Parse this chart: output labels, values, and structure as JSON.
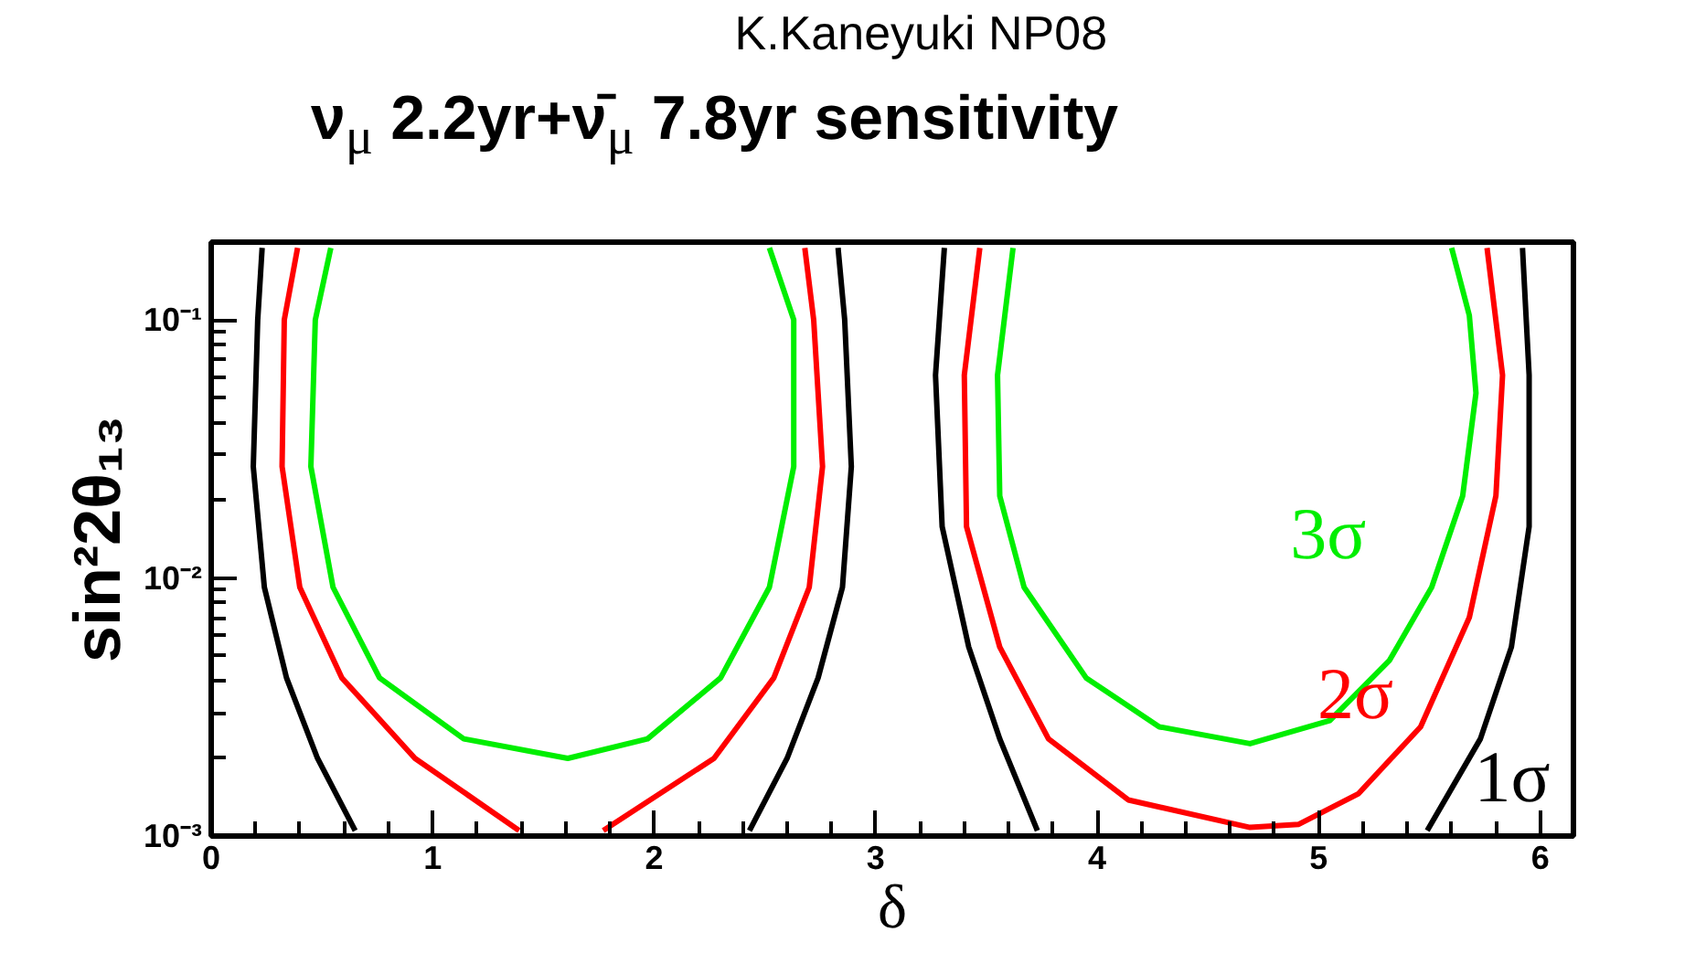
{
  "chart_data": {
    "type": "line",
    "title": "ν$_{μ}$ 2.2yr+ν̄$_{μ}$ 7.8yr sensitivity",
    "xlabel": "δ",
    "ylabel": "sin²2θ₁₃",
    "log": "y",
    "grid": false,
    "marker": "none",
    "line_style": "solid",
    "xlim": [
      0,
      6.15
    ],
    "ylim": [
      0.001,
      0.2
    ],
    "xticks": [
      0,
      1,
      2,
      3,
      4,
      5,
      6
    ],
    "yticks": [
      {
        "value": 0.001,
        "label": "10⁻³"
      },
      {
        "value": 0.01,
        "label": "10⁻²"
      },
      {
        "value": 0.1,
        "label": "10⁻¹"
      }
    ],
    "series": [
      {
        "name": "1σ",
        "color": "#000000",
        "x": [
          0.65,
          0.48,
          0.34,
          0.24,
          0.19,
          0.21,
          0.23,
          null,
          2.43,
          2.6,
          2.74,
          2.85,
          2.89,
          2.86,
          2.83,
          null,
          3.73,
          3.56,
          3.42,
          3.3,
          3.27,
          3.31,
          null,
          5.49,
          5.73,
          5.87,
          5.95,
          5.95,
          5.92
        ],
        "values": [
          0.00105,
          0.002,
          0.0041,
          0.0092,
          0.027,
          0.1,
          0.19,
          null,
          0.00105,
          0.002,
          0.0041,
          0.0092,
          0.027,
          0.1,
          0.19,
          null,
          0.00105,
          0.00238,
          0.0054,
          0.0158,
          0.061,
          0.19,
          null,
          0.00105,
          0.00238,
          0.0054,
          0.0158,
          0.061,
          0.19
        ]
      },
      {
        "name": "2σ",
        "color": "#ff0000",
        "x": [
          1.39,
          0.92,
          0.59,
          0.4,
          0.32,
          0.33,
          0.39,
          null,
          1.77,
          2.27,
          2.54,
          2.7,
          2.76,
          2.72,
          2.68,
          null,
          3.47,
          3.4,
          3.41,
          3.56,
          3.78,
          4.14,
          4.69,
          4.91,
          5.18,
          5.46,
          5.68,
          5.8,
          5.83,
          5.76
        ],
        "values": [
          0.00105,
          0.002,
          0.0041,
          0.0092,
          0.027,
          0.1,
          0.19,
          null,
          0.00105,
          0.002,
          0.0041,
          0.0092,
          0.027,
          0.1,
          0.19,
          null,
          0.19,
          0.061,
          0.0158,
          0.0054,
          0.00238,
          0.00138,
          0.00108,
          0.00111,
          0.00146,
          0.00265,
          0.00703,
          0.0208,
          0.061,
          0.19
        ]
      },
      {
        "name": "3σ",
        "color": "#00ee00",
        "x": [
          0.54,
          0.47,
          0.45,
          0.55,
          0.76,
          1.14,
          1.61,
          1.97,
          2.3,
          2.52,
          2.63,
          2.63,
          2.52,
          null,
          3.62,
          3.55,
          3.56,
          3.67,
          3.95,
          4.28,
          4.69,
          5.05,
          5.32,
          5.51,
          5.65,
          5.71,
          5.68,
          5.6
        ],
        "values": [
          0.19,
          0.1,
          0.027,
          0.0092,
          0.0041,
          0.00238,
          0.002,
          0.00238,
          0.0041,
          0.0092,
          0.027,
          0.1,
          0.19,
          null,
          0.19,
          0.061,
          0.0208,
          0.0092,
          0.0041,
          0.00265,
          0.00228,
          0.0028,
          0.0048,
          0.0092,
          0.0208,
          0.052,
          0.104,
          0.19
        ]
      }
    ],
    "annotations": [
      "K.Kaneyuki NP08"
    ]
  }
}
